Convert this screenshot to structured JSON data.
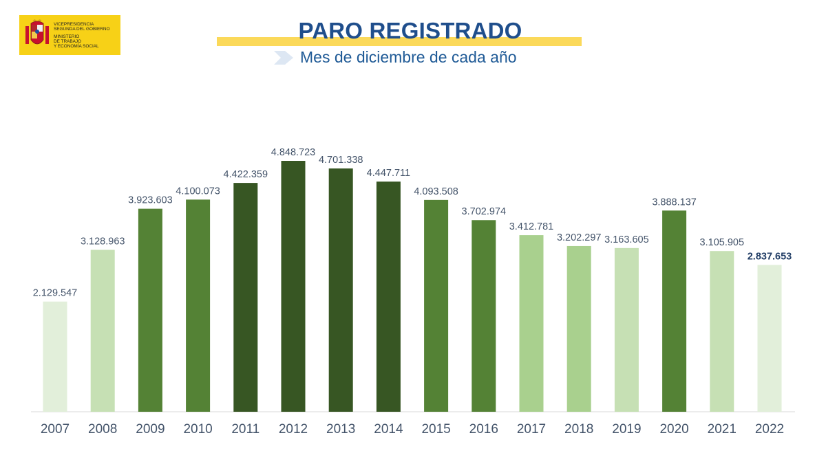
{
  "logo": {
    "line1": "VICEPRESIDENCIA",
    "line2": "SEGUNDA DEL GOBIERNO",
    "line3": "MINISTERIO",
    "line4": "DE TRABAJO",
    "line5": "Y ECONOMÍA SOCIAL"
  },
  "title": "PARO REGISTRADO",
  "subtitle": "Mes de diciembre de cada año",
  "chart_data": {
    "type": "bar",
    "title": "PARO REGISTRADO",
    "subtitle": "Mes de diciembre de cada año",
    "categories": [
      "2007",
      "2008",
      "2009",
      "2010",
      "2011",
      "2012",
      "2013",
      "2014",
      "2015",
      "2016",
      "2017",
      "2018",
      "2019",
      "2020",
      "2021",
      "2022"
    ],
    "values": [
      2129547,
      3128963,
      3923603,
      4100073,
      4422359,
      4848723,
      4701338,
      4447711,
      4093508,
      3702974,
      3412781,
      3202297,
      3163605,
      3888137,
      3105905,
      2837653
    ],
    "labels": [
      "2.129.547",
      "3.128.963",
      "3.923.603",
      "4.100.073",
      "4.422.359",
      "4.848.723",
      "4.701.338",
      "4.447.711",
      "4.093.508",
      "3.702.974",
      "3.412.781",
      "3.202.297",
      "3.163.605",
      "3.888.137",
      "3.105.905",
      "2.837.653"
    ],
    "bar_colors": [
      "#e2efda",
      "#c6e0b4",
      "#548235",
      "#548235",
      "#375623",
      "#375623",
      "#375623",
      "#375623",
      "#548235",
      "#548235",
      "#a9d08e",
      "#a9d08e",
      "#c6e0b4",
      "#548235",
      "#c6e0b4",
      "#e2efda"
    ],
    "highlight_last_label": true,
    "ylim": [
      0,
      4848723
    ],
    "grid": false,
    "label_color": "#44546a",
    "axis_color": "#d9d9d9"
  }
}
